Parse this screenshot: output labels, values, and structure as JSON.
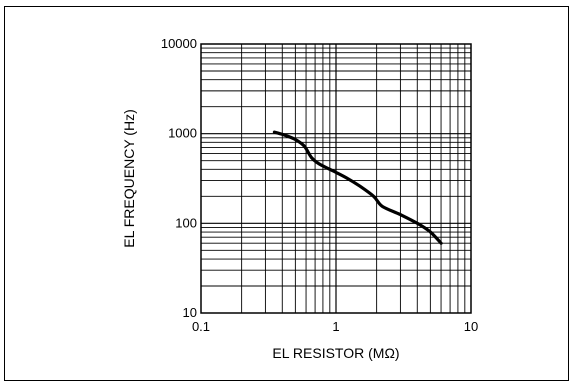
{
  "chart_data": {
    "type": "line",
    "title": "",
    "xlabel": "EL RESISTOR (MΩ)",
    "ylabel": "EL FREQUENCY (Hz)",
    "x_scale": "log",
    "y_scale": "log",
    "xlim": [
      0.1,
      10
    ],
    "ylim": [
      10,
      10000
    ],
    "grid": true,
    "x_ticks": [
      {
        "value": 0.1,
        "label": "0.1"
      },
      {
        "value": 1,
        "label": "1"
      },
      {
        "value": 10,
        "label": "10"
      }
    ],
    "y_ticks": [
      {
        "value": 10,
        "label": "10"
      },
      {
        "value": 100,
        "label": "100"
      },
      {
        "value": 1000,
        "label": "1000"
      },
      {
        "value": 10000,
        "label": "10000"
      }
    ],
    "series": [
      {
        "color": "#000000",
        "x": [
          0.35,
          0.42,
          0.5,
          0.58,
          0.66,
          0.75,
          0.9,
          1.0,
          1.2,
          1.5,
          1.9,
          2.2,
          3.0,
          4.0,
          5.0,
          6.0
        ],
        "y": [
          1040,
          960,
          860,
          730,
          540,
          460,
          400,
          370,
          320,
          260,
          200,
          155,
          125,
          100,
          80,
          60
        ]
      }
    ]
  }
}
